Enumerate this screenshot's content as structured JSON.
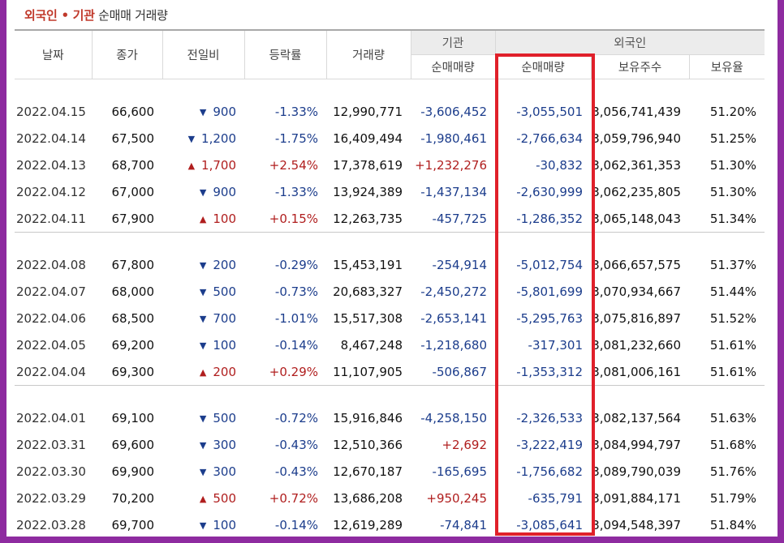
{
  "title": {
    "part1": "외국인",
    "dot": " • ",
    "part2": "기관",
    "part3": " 순매매 거래량"
  },
  "headers": {
    "date": "날짜",
    "close": "종가",
    "change": "전일비",
    "rate": "등락률",
    "volume": "거래량",
    "inst_group": "기관",
    "inst_net": "순매매량",
    "foreign_group": "외국인",
    "foreign_net": "순매매량",
    "foreign_shares": "보유주수",
    "foreign_ratio": "보유율"
  },
  "colors": {
    "up": "#b01e1e",
    "down": "#1c3d8c",
    "highlight": "#e0202a",
    "background": "#8e2ba0"
  },
  "groups": [
    {
      "rows": [
        {
          "date": "2022.04.15",
          "close": "66,600",
          "dir": "down",
          "change": "900",
          "rate": "-1.33%",
          "volume": "12,990,771",
          "inst": "-3,606,452",
          "foreign": "-3,055,501",
          "shares": "3,056,741,439",
          "ratio": "51.20%"
        },
        {
          "date": "2022.04.14",
          "close": "67,500",
          "dir": "down",
          "change": "1,200",
          "rate": "-1.75%",
          "volume": "16,409,494",
          "inst": "-1,980,461",
          "foreign": "-2,766,634",
          "shares": "3,059,796,940",
          "ratio": "51.25%"
        },
        {
          "date": "2022.04.13",
          "close": "68,700",
          "dir": "up",
          "change": "1,700",
          "rate": "+2.54%",
          "volume": "17,378,619",
          "inst": "+1,232,276",
          "foreign": "-30,832",
          "shares": "3,062,361,353",
          "ratio": "51.30%"
        },
        {
          "date": "2022.04.12",
          "close": "67,000",
          "dir": "down",
          "change": "900",
          "rate": "-1.33%",
          "volume": "13,924,389",
          "inst": "-1,437,134",
          "foreign": "-2,630,999",
          "shares": "3,062,235,805",
          "ratio": "51.30%"
        },
        {
          "date": "2022.04.11",
          "close": "67,900",
          "dir": "up",
          "change": "100",
          "rate": "+0.15%",
          "volume": "12,263,735",
          "inst": "-457,725",
          "foreign": "-1,286,352",
          "shares": "3,065,148,043",
          "ratio": "51.34%"
        }
      ]
    },
    {
      "rows": [
        {
          "date": "2022.04.08",
          "close": "67,800",
          "dir": "down",
          "change": "200",
          "rate": "-0.29%",
          "volume": "15,453,191",
          "inst": "-254,914",
          "foreign": "-5,012,754",
          "shares": "3,066,657,575",
          "ratio": "51.37%"
        },
        {
          "date": "2022.04.07",
          "close": "68,000",
          "dir": "down",
          "change": "500",
          "rate": "-0.73%",
          "volume": "20,683,327",
          "inst": "-2,450,272",
          "foreign": "-5,801,699",
          "shares": "3,070,934,667",
          "ratio": "51.44%"
        },
        {
          "date": "2022.04.06",
          "close": "68,500",
          "dir": "down",
          "change": "700",
          "rate": "-1.01%",
          "volume": "15,517,308",
          "inst": "-2,653,141",
          "foreign": "-5,295,763",
          "shares": "3,075,816,897",
          "ratio": "51.52%"
        },
        {
          "date": "2022.04.05",
          "close": "69,200",
          "dir": "down",
          "change": "100",
          "rate": "-0.14%",
          "volume": "8,467,248",
          "inst": "-1,218,680",
          "foreign": "-317,301",
          "shares": "3,081,232,660",
          "ratio": "51.61%"
        },
        {
          "date": "2022.04.04",
          "close": "69,300",
          "dir": "up",
          "change": "200",
          "rate": "+0.29%",
          "volume": "11,107,905",
          "inst": "-506,867",
          "foreign": "-1,353,312",
          "shares": "3,081,006,161",
          "ratio": "51.61%"
        }
      ]
    },
    {
      "rows": [
        {
          "date": "2022.04.01",
          "close": "69,100",
          "dir": "down",
          "change": "500",
          "rate": "-0.72%",
          "volume": "15,916,846",
          "inst": "-4,258,150",
          "foreign": "-2,326,533",
          "shares": "3,082,137,564",
          "ratio": "51.63%"
        },
        {
          "date": "2022.03.31",
          "close": "69,600",
          "dir": "down",
          "change": "300",
          "rate": "-0.43%",
          "volume": "12,510,366",
          "inst": "+2,692",
          "foreign": "-3,222,419",
          "shares": "3,084,994,797",
          "ratio": "51.68%"
        },
        {
          "date": "2022.03.30",
          "close": "69,900",
          "dir": "down",
          "change": "300",
          "rate": "-0.43%",
          "volume": "12,670,187",
          "inst": "-165,695",
          "foreign": "-1,756,682",
          "shares": "3,089,790,039",
          "ratio": "51.76%"
        },
        {
          "date": "2022.03.29",
          "close": "70,200",
          "dir": "up",
          "change": "500",
          "rate": "+0.72%",
          "volume": "13,686,208",
          "inst": "+950,245",
          "foreign": "-635,791",
          "shares": "3,091,884,171",
          "ratio": "51.79%"
        },
        {
          "date": "2022.03.28",
          "close": "69,700",
          "dir": "down",
          "change": "100",
          "rate": "-0.14%",
          "volume": "12,619,289",
          "inst": "-74,841",
          "foreign": "-3,085,641",
          "shares": "3,094,548,397",
          "ratio": "51.84%"
        }
      ]
    }
  ]
}
